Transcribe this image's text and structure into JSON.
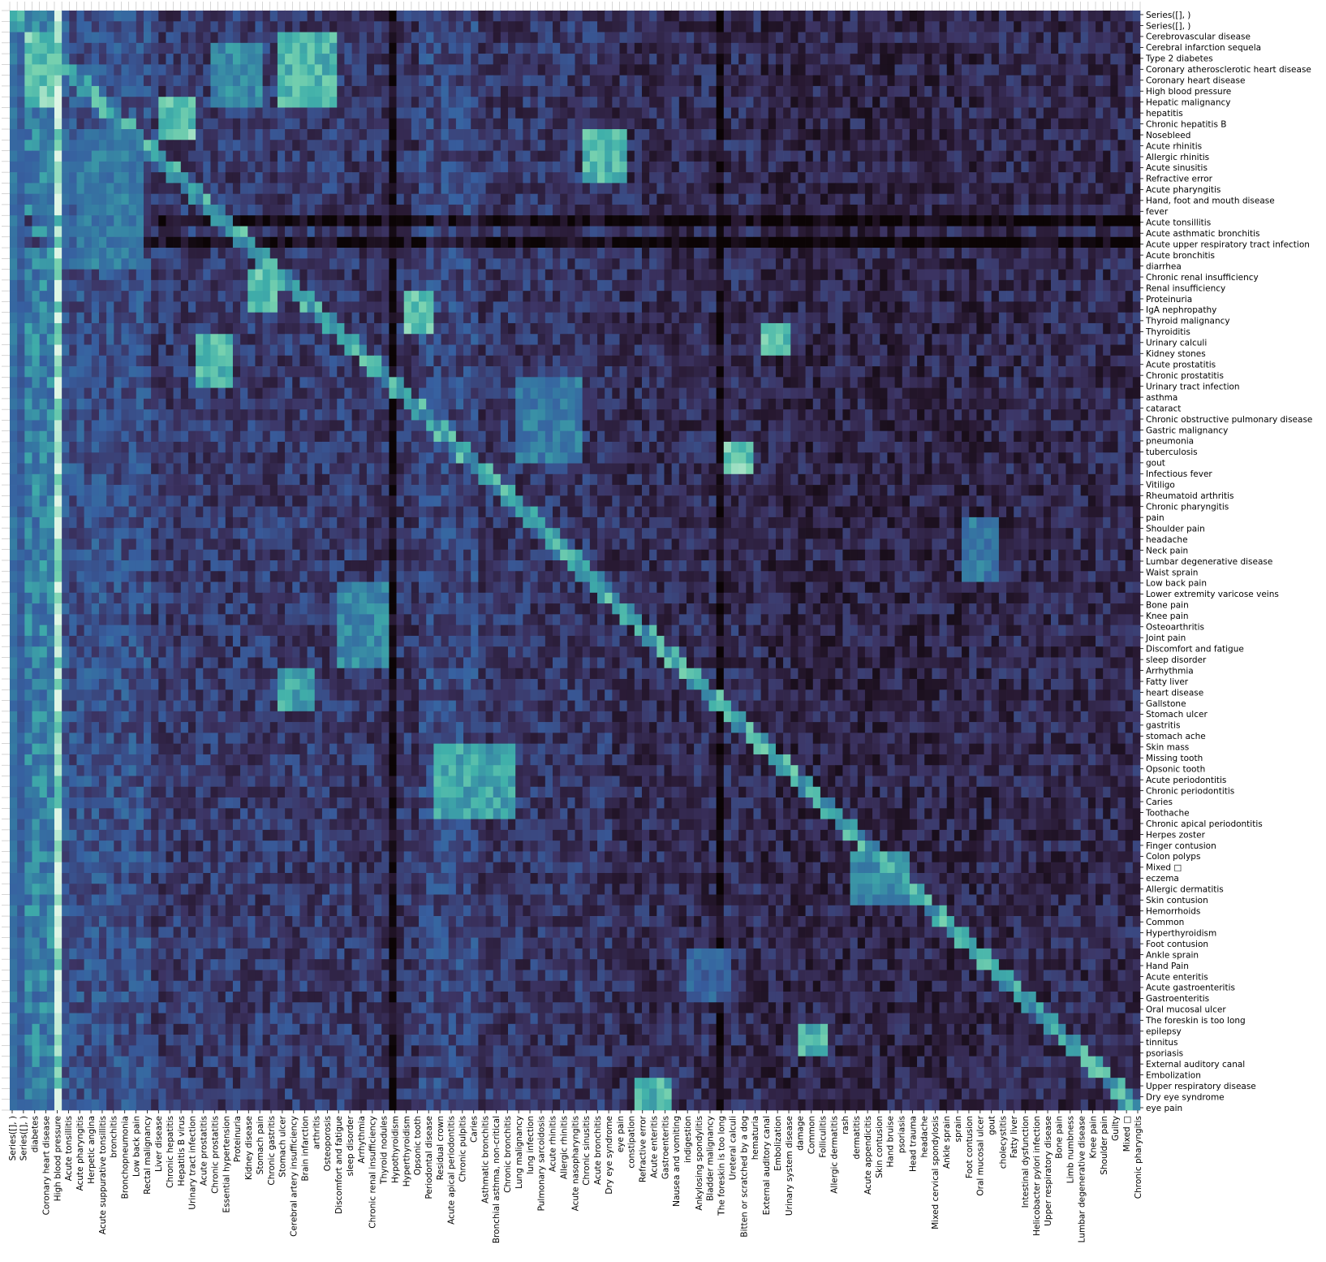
{
  "chart_data": {
    "type": "heatmap",
    "title": "",
    "xlabel": "",
    "ylabel": "",
    "colormap": "mako",
    "colors": {
      "low": "#0b0405",
      "mid": "#357ba3",
      "high": "#def5e5",
      "tick": "#000000",
      "background": "#ffffff"
    },
    "value_range": [
      0,
      1
    ],
    "n_cols": 152,
    "n_rows": 102,
    "grid": false,
    "colorbar": false,
    "x_tick_labels": [
      "Series([], )",
      "Series([], )",
      "diabetes",
      "Coronary heart disease",
      "High blood pressure",
      "Acute tonsillitis",
      "Acute pharyngitis",
      "Herpetic angina",
      "Acute suppurative tonsillitis",
      "bronchitis",
      "Bronchopneumonia",
      "Low back pain",
      "Rectal malignancy",
      "Liver disease",
      "Chronic hepatitis",
      "Hepatitis B virus",
      "Urinary tract infection",
      "Acute prostatitis",
      "Chronic prostatitis",
      "Essential hypertension",
      "Proteinuria",
      "Kidney disease",
      "Stomach pain",
      "Chronic gastritis",
      "Stomach ulcer",
      "Cerebral artery insufficiency",
      "Brain infarction",
      "arthritis",
      "Osteoporosis",
      "Discomfort and fatigue",
      "sleep disorder",
      "Arrhythmia",
      "Chronic renal insufficiency",
      "Thyroid nodules",
      "Hypothyroidism",
      "Hyperthyroidism",
      "Opsonic tooth",
      "Periodontal disease",
      "Residual crown",
      "Acute apical periodontitis",
      "Chronic pulpitis",
      "Caries",
      "Asthmatic bronchitis",
      "Bronchial asthma, non-critical",
      "Chronic bronchitis",
      "Lung malignancy",
      "lung infection",
      "Pulmonary sarcoidosis",
      "Acute rhinitis",
      "Allergic rhinitis",
      "Acute nasopharyngitis",
      "Chronic sinusitis",
      "Acute bronchitis",
      "Dry eye syndrome",
      "eye pain",
      "constipation",
      "Refractive error",
      "Acute enteritis",
      "Gastroenteritis",
      "Nausea and vomiting",
      "indigestion",
      "Ankylosing spondylitis",
      "Bladder malignancy",
      "The foreskin is too long",
      "Ureteral calculi",
      "Bitten or scratched by a dog",
      "hematuria",
      "External auditory canal",
      "Embolization",
      "Urinary system disease",
      "damage",
      "Common",
      "Folliculitis",
      "Allergic dermatitis",
      "rash",
      "dermatitis",
      "Acute appendicitis",
      "Skin contusion",
      "Hand bruise",
      "psoriasis",
      "Head trauma",
      "headache",
      "Mixed cervical spondylosis",
      "Ankle sprain",
      "sprain",
      "Foot contusion",
      "Oral mucosal ulcer",
      "gout",
      "cholecystitis",
      "Fatty liver",
      "Intestinal dysfunction",
      "Helicobacter pylori infection",
      "Upper respiratory disease",
      "Bone pain",
      "Limb numbness",
      "Lumbar degenerative disease",
      "Knee pain",
      "Shoulder pain",
      "Guilty",
      "Mixed □",
      "Chronic pharyngitis"
    ],
    "y_tick_labels": [
      "Series([], )",
      "Series([], )",
      "Cerebrovascular disease",
      "Cerebral infarction sequela",
      "Type 2 diabetes",
      "Coronary atherosclerotic heart disease",
      "Coronary heart disease",
      "High blood pressure",
      "Hepatic malignancy",
      "hepatitis",
      "Chronic hepatitis B",
      "Nosebleed",
      "Acute rhinitis",
      "Allergic rhinitis",
      "Acute sinusitis",
      "Refractive error",
      "Acute pharyngitis",
      "Hand, foot and mouth disease",
      "fever",
      "Acute tonsillitis",
      "Acute asthmatic bronchitis",
      "Acute upper respiratory tract infection",
      "Acute bronchitis",
      "diarrhea",
      "Chronic renal insufficiency",
      "Renal insufficiency",
      "Proteinuria",
      "IgA nephropathy",
      "Thyroid malignancy",
      "Thyroiditis",
      "Urinary calculi",
      "Kidney stones",
      "Acute prostatitis",
      "Chronic prostatitis",
      "Urinary tract infection",
      "asthma",
      "cataract",
      "Chronic obstructive pulmonary disease",
      "Gastric malignancy",
      "pneumonia",
      "tuberculosis",
      "gout",
      "Infectious fever",
      "Vitiligo",
      "Rheumatoid arthritis",
      "Chronic pharyngitis",
      "pain",
      "Shoulder pain",
      "headache",
      "Neck pain",
      "Lumbar degenerative disease",
      "Waist sprain",
      "Low back pain",
      "Lower extremity varicose veins",
      "Bone pain",
      "Knee pain",
      "Osteoarthritis",
      "Joint pain",
      "Discomfort and fatigue",
      "sleep disorder",
      "Arrhythmia",
      "Fatty liver",
      "heart disease",
      "Gallstone",
      "Stomach ulcer",
      "gastritis",
      "stomach ache",
      "Skin mass",
      "Missing tooth",
      "Opsonic tooth",
      "Acute periodontitis",
      "Chronic periodontitis",
      "Caries",
      "Toothache",
      "Chronic apical periodontitis",
      "Herpes zoster",
      "Finger contusion",
      "Colon polyps",
      "Mixed □",
      "eczema",
      "Allergic dermatitis",
      "Skin contusion",
      "Hemorrhoids",
      "Common",
      "Hyperthyroidism",
      "Foot contusion",
      "Ankle sprain",
      "Hand Pain",
      "Acute enteritis",
      "Acute gastroenteritis",
      "Gastroenteritis",
      "Oral mucosal ulcer",
      "The foreskin is too long",
      "epilepsy",
      "tinnitus",
      "psoriasis",
      "External auditory canal",
      "Embolization",
      "Upper respiratory disease",
      "Dry eye syndrome",
      "eye pain"
    ],
    "blocks": [
      {
        "x": [
          2,
          5
        ],
        "y": [
          2,
          8
        ],
        "value": 0.95
      },
      {
        "x": [
          36,
          43
        ],
        "y": [
          2,
          8
        ],
        "value": 0.9
      },
      {
        "x": [
          27,
          33
        ],
        "y": [
          3,
          8
        ],
        "value": 0.75
      },
      {
        "x": [
          20,
          24
        ],
        "y": [
          8,
          11
        ],
        "value": 0.95
      },
      {
        "x": [
          77,
          82
        ],
        "y": [
          11,
          15
        ],
        "value": 0.9
      },
      {
        "x": [
          9,
          17
        ],
        "y": [
          11,
          23
        ],
        "value": 0.7
      },
      {
        "x": [
          5,
          9
        ],
        "y": [
          11,
          23
        ],
        "value": 0.6
      },
      {
        "x": [
          32,
          35
        ],
        "y": [
          24,
          27
        ],
        "value": 0.92
      },
      {
        "x": [
          53,
          56
        ],
        "y": [
          26,
          29
        ],
        "value": 0.95
      },
      {
        "x": [
          25,
          29
        ],
        "y": [
          30,
          34
        ],
        "value": 0.9
      },
      {
        "x": [
          101,
          104
        ],
        "y": [
          29,
          31
        ],
        "value": 0.95
      },
      {
        "x": [
          68,
          76
        ],
        "y": [
          34,
          41
        ],
        "value": 0.7
      },
      {
        "x": [
          96,
          99
        ],
        "y": [
          40,
          42
        ],
        "value": 0.95
      },
      {
        "x": [
          128,
          132
        ],
        "y": [
          47,
          52
        ],
        "value": 0.7
      },
      {
        "x": [
          44,
          50
        ],
        "y": [
          53,
          60
        ],
        "value": 0.75
      },
      {
        "x": [
          36,
          40
        ],
        "y": [
          61,
          64
        ],
        "value": 0.85
      },
      {
        "x": [
          57,
          67
        ],
        "y": [
          68,
          74
        ],
        "value": 0.85
      },
      {
        "x": [
          113,
          120
        ],
        "y": [
          78,
          82
        ],
        "value": 0.75
      },
      {
        "x": [
          91,
          96
        ],
        "y": [
          87,
          91
        ],
        "value": 0.6
      },
      {
        "x": [
          106,
          109
        ],
        "y": [
          94,
          96
        ],
        "value": 0.9
      },
      {
        "x": [
          84,
          88
        ],
        "y": [
          99,
          101
        ],
        "value": 0.9
      }
    ]
  }
}
